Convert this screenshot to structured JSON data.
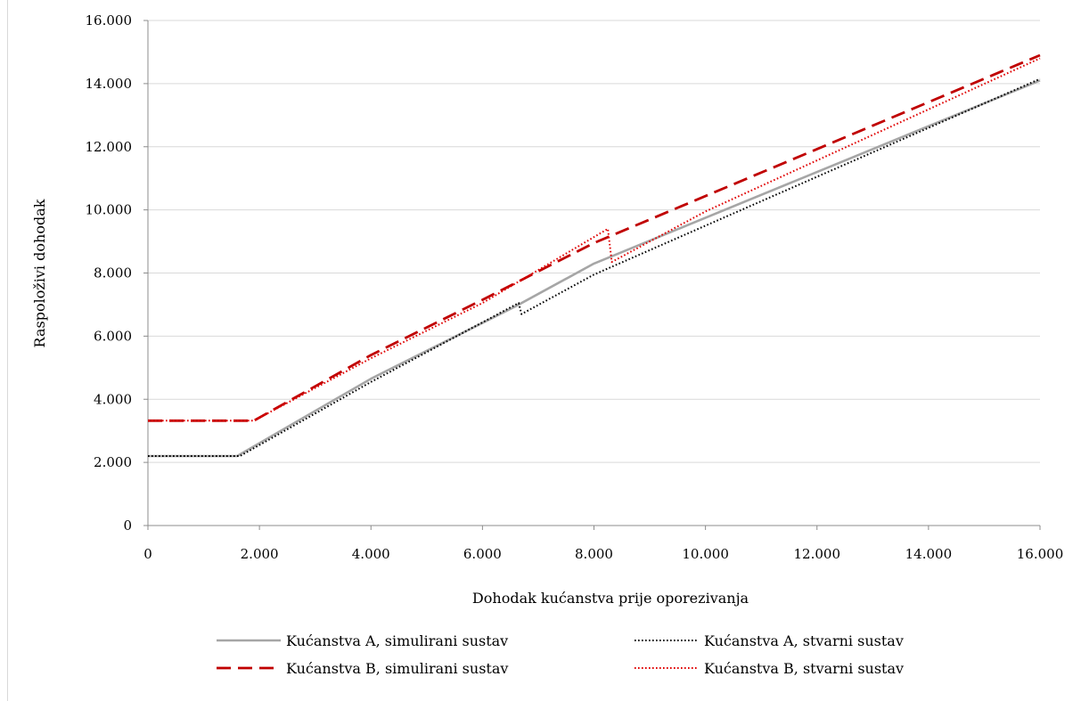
{
  "chart_data": {
    "type": "line",
    "xlabel": "Dohodak kućanstva prije oporezivanja",
    "ylabel": "Raspoloživi dohodak",
    "xlim": [
      0,
      16000
    ],
    "ylim": [
      0,
      16000
    ],
    "x_ticks": [
      0,
      2000,
      4000,
      6000,
      8000,
      10000,
      12000,
      14000,
      16000
    ],
    "x_tick_labels": [
      "0",
      "2.000",
      "4.000",
      "6.000",
      "8.000",
      "10.000",
      "12.000",
      "14.000",
      "16.000"
    ],
    "y_ticks": [
      0,
      2000,
      4000,
      6000,
      8000,
      10000,
      12000,
      14000,
      16000
    ],
    "y_tick_labels": [
      "0",
      "2.000",
      "4.000",
      "6.000",
      "8.000",
      "10.000",
      "12.000",
      "14.000",
      "16.000"
    ],
    "grid": "horizontal",
    "legend_position": "bottom",
    "series": [
      {
        "name": "Kućanstva A, simulirani sustav",
        "color": "#a6a6a6",
        "style": "solid",
        "points": [
          [
            0,
            2200
          ],
          [
            1600,
            2200
          ],
          [
            4000,
            4650
          ],
          [
            6600,
            6950
          ],
          [
            8000,
            8300
          ],
          [
            16000,
            14100
          ]
        ]
      },
      {
        "name": "Kućanstva A, stvarni sustav",
        "color": "#000000",
        "style": "dotted",
        "points": [
          [
            0,
            2200
          ],
          [
            1650,
            2200
          ],
          [
            4000,
            4550
          ],
          [
            6650,
            7050
          ],
          [
            6700,
            6700
          ],
          [
            8000,
            7950
          ],
          [
            16000,
            14150
          ]
        ]
      },
      {
        "name": "Kućanstva B, simulirani sustav",
        "color": "#c00000",
        "style": "dashed",
        "points": [
          [
            0,
            3320
          ],
          [
            1900,
            3320
          ],
          [
            4000,
            5400
          ],
          [
            6000,
            7150
          ],
          [
            8000,
            8950
          ],
          [
            16000,
            14900
          ]
        ]
      },
      {
        "name": "Kućanstva B, stvarni sustav",
        "color": "#e00000",
        "style": "dotted",
        "points": [
          [
            0,
            3320
          ],
          [
            1900,
            3320
          ],
          [
            4000,
            5300
          ],
          [
            6000,
            7050
          ],
          [
            8250,
            9400
          ],
          [
            8320,
            8350
          ],
          [
            10000,
            9950
          ],
          [
            16000,
            14800
          ]
        ]
      }
    ]
  }
}
